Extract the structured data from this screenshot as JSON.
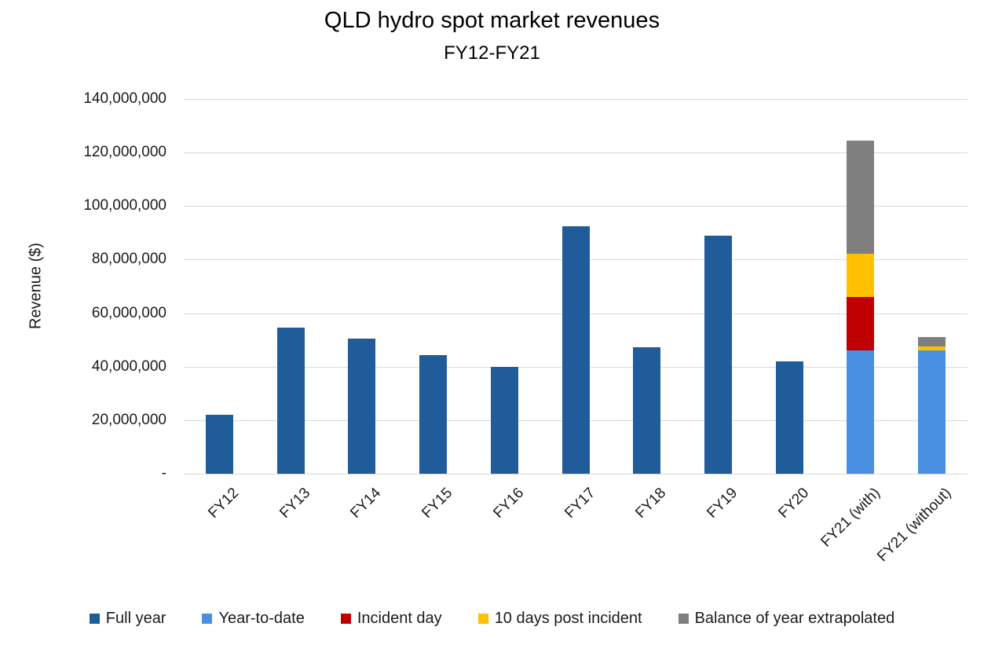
{
  "chart_data": {
    "type": "bar",
    "stacked": true,
    "title": "QLD hydro spot market revenues",
    "subtitle": "FY12-FY21",
    "xlabel": "",
    "ylabel": "Revenue ($)",
    "ylim": [
      0,
      140000000
    ],
    "ytick_interval": 20000000,
    "ytick_labels_top_to_bottom": [
      "140,000,000",
      "120,000,000",
      "100,000,000",
      "80,000,000",
      "60,000,000",
      "40,000,000",
      "20,000,000",
      "-"
    ],
    "grid": true,
    "legend_position": "bottom",
    "categories": [
      "FY12",
      "FY13",
      "FY14",
      "FY15",
      "FY16",
      "FY17",
      "FY18",
      "FY19",
      "FY20",
      "FY21 (with)",
      "FY21 (without)"
    ],
    "series": [
      {
        "name": "Full year",
        "color": "#1F5C99",
        "values": [
          22000000,
          54500000,
          50500000,
          44300000,
          39800000,
          92500000,
          47300000,
          89000000,
          42000000,
          0,
          0
        ]
      },
      {
        "name": "Year-to-date",
        "color": "#4A90E0",
        "values": [
          0,
          0,
          0,
          0,
          0,
          0,
          0,
          0,
          0,
          46000000,
          46000000
        ]
      },
      {
        "name": "Incident day",
        "color": "#C00000",
        "values": [
          0,
          0,
          0,
          0,
          0,
          0,
          0,
          0,
          0,
          20000000,
          0
        ]
      },
      {
        "name": "10 days post incident",
        "color": "#FFC000",
        "values": [
          0,
          0,
          0,
          0,
          0,
          0,
          0,
          0,
          0,
          16300000,
          1500000
        ]
      },
      {
        "name": "Balance of year extrapolated",
        "color": "#7F7F7F",
        "values": [
          0,
          0,
          0,
          0,
          0,
          0,
          0,
          0,
          0,
          42100000,
          3700000
        ]
      }
    ]
  }
}
